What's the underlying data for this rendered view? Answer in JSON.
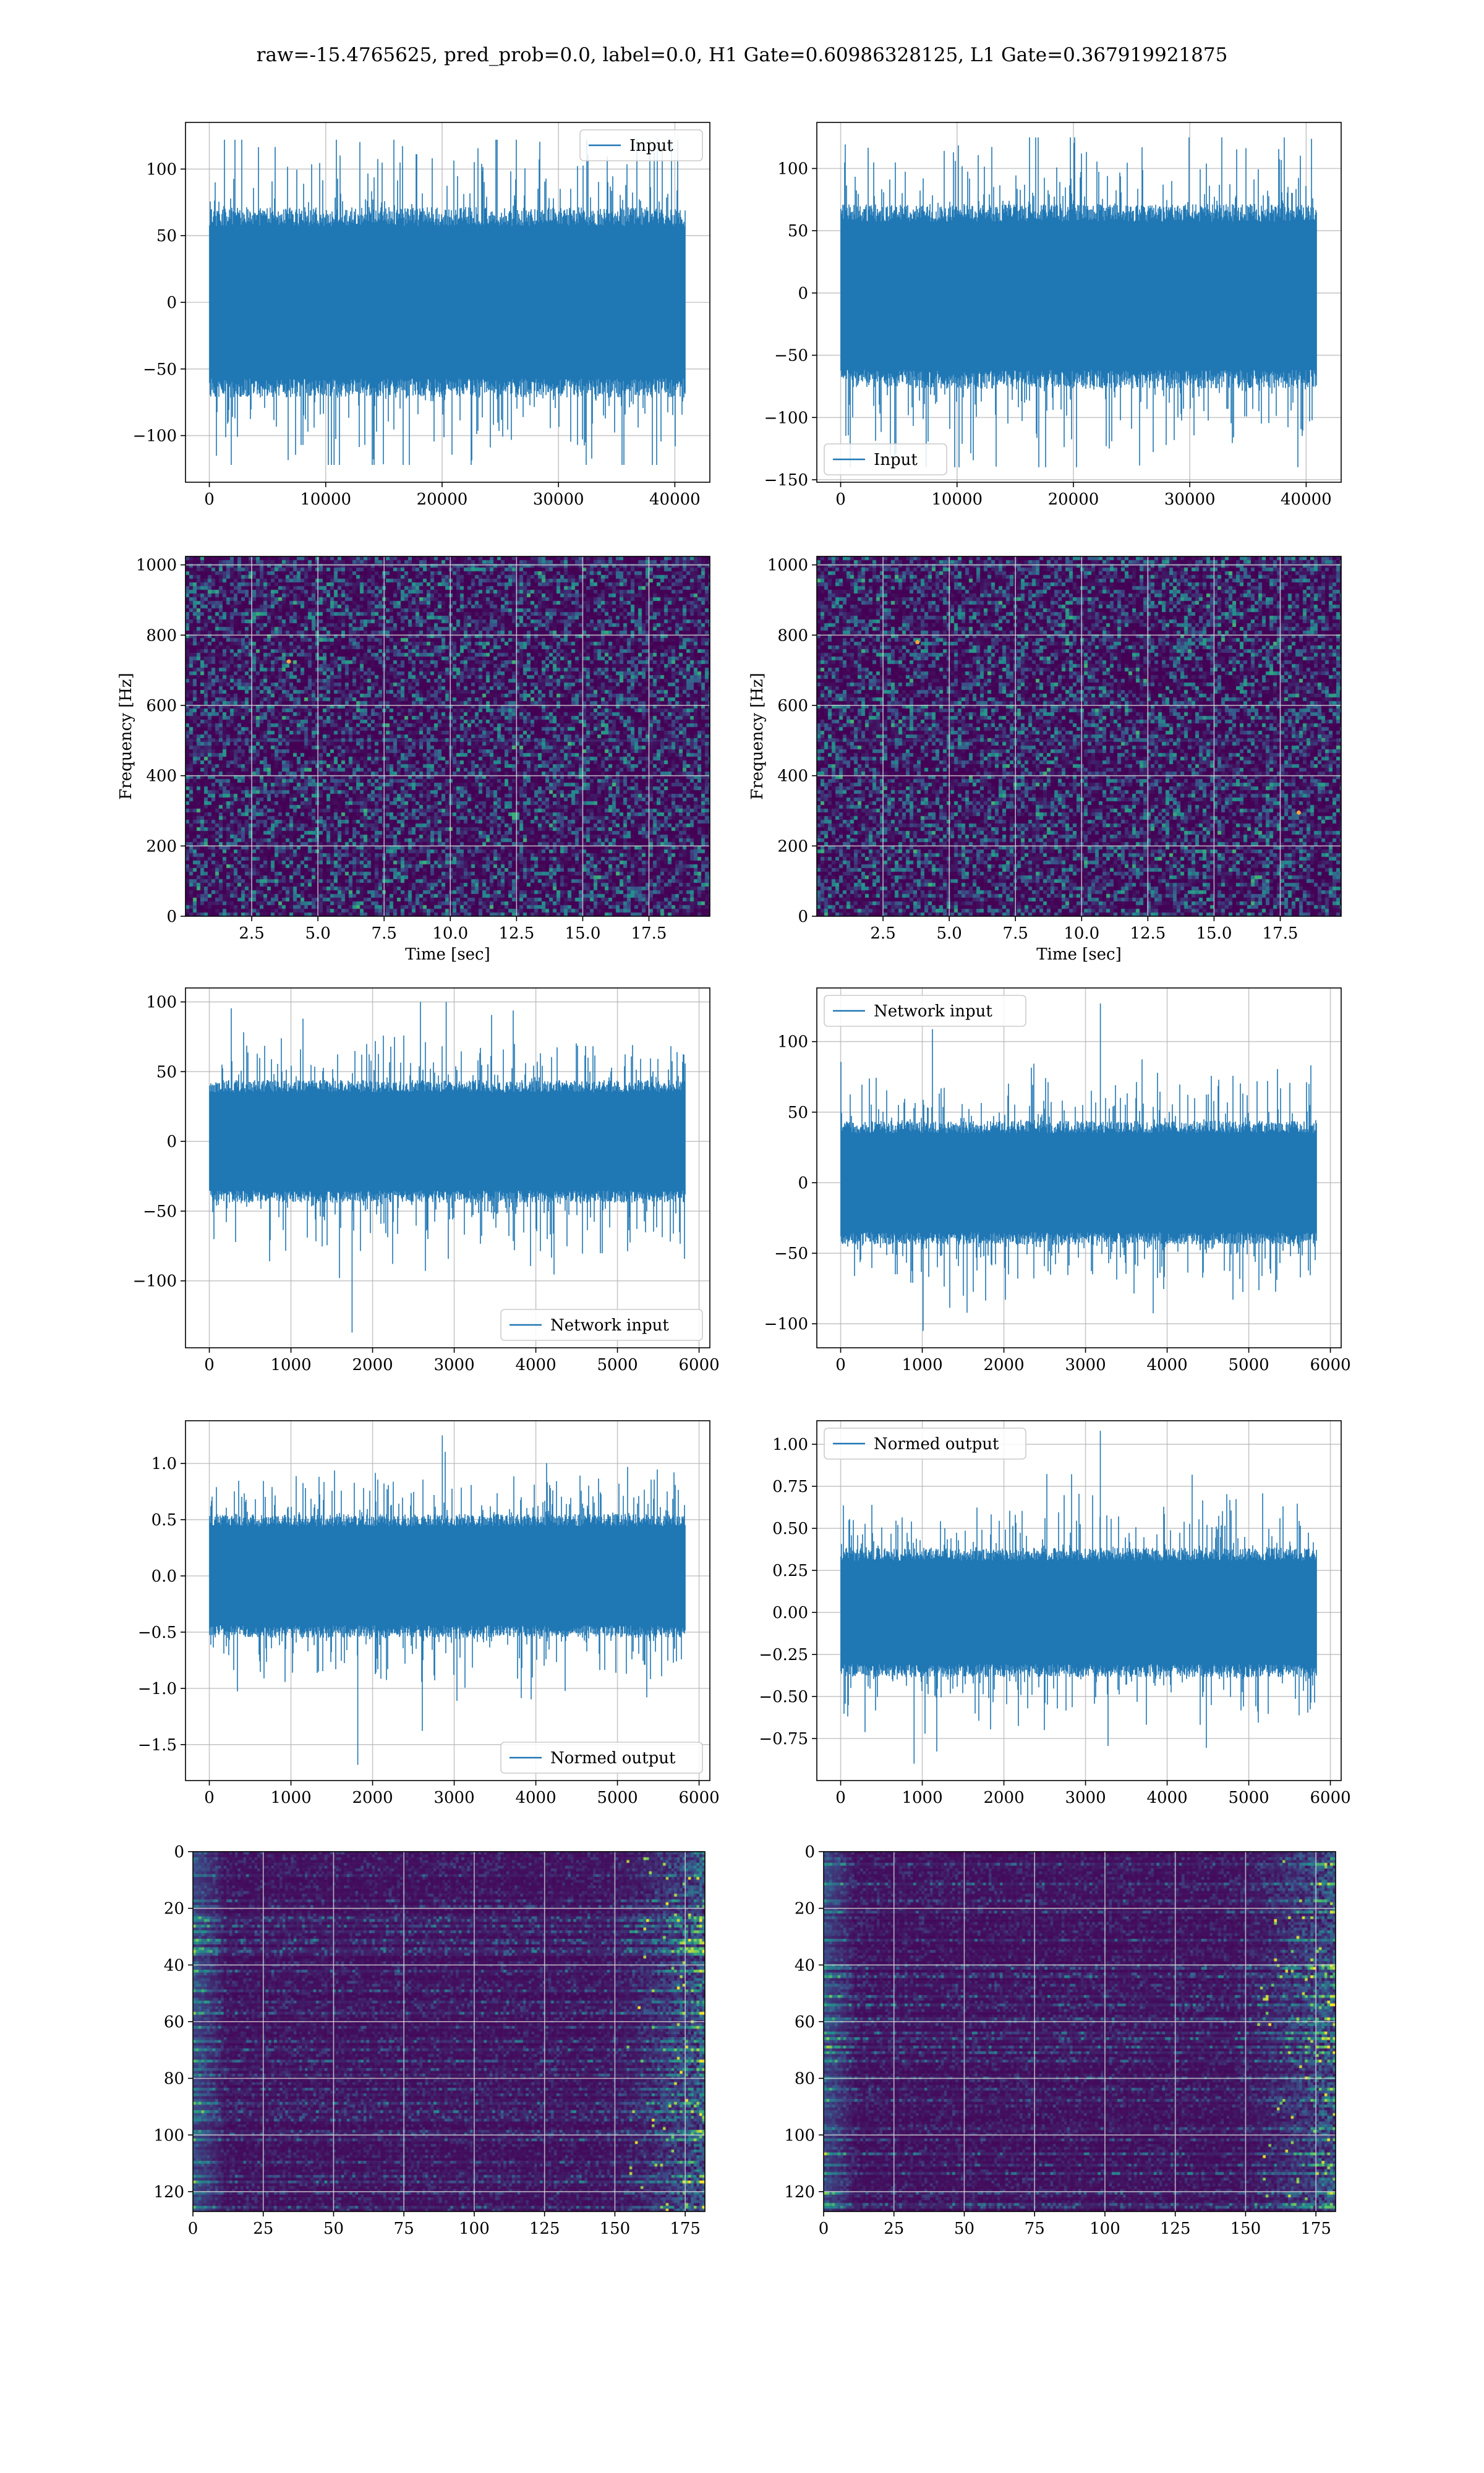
{
  "figure": {
    "suptitle": "raw=-15.4765625, pred_prob=0.0, label=0.0, H1 Gate=0.60986328125, L1 Gate=0.367919921875"
  },
  "colors": {
    "line": "#1f77b4",
    "grid": "#b0b0b0",
    "axes_edge": "#000000",
    "viridis_dark": "#440154",
    "viridis_mid": "#21918c",
    "viridis_bright": "#fde725"
  },
  "chart_data": [
    {
      "id": "input-h1",
      "type": "line",
      "series": [
        {
          "name": "Input",
          "n_samples": 40960,
          "y_min": -122,
          "y_max": 122,
          "band": [
            -65,
            65
          ]
        }
      ],
      "xlim": [
        -2048,
        43008
      ],
      "ylim": [
        -135,
        135
      ],
      "xticks": [
        0,
        10000,
        20000,
        30000,
        40000
      ],
      "xtick_labels": [
        "0",
        "10000",
        "20000",
        "30000",
        "40000"
      ],
      "yticks": [
        -100,
        -50,
        0,
        50,
        100
      ],
      "ytick_labels": [
        "−100",
        "−50",
        "0",
        "50",
        "100"
      ],
      "legend": "top-right",
      "grid": true,
      "xlabel": "",
      "ylabel": ""
    },
    {
      "id": "input-l1",
      "type": "line",
      "series": [
        {
          "name": "Input",
          "n_samples": 40960,
          "y_min": -140,
          "y_max": 125,
          "band": [
            -70,
            65
          ]
        }
      ],
      "xlim": [
        -2048,
        43008
      ],
      "ylim": [
        -152,
        137
      ],
      "xticks": [
        0,
        10000,
        20000,
        30000,
        40000
      ],
      "xtick_labels": [
        "0",
        "10000",
        "20000",
        "30000",
        "40000"
      ],
      "yticks": [
        -150,
        -100,
        -50,
        0,
        50,
        100
      ],
      "ytick_labels": [
        "−150",
        "−100",
        "−50",
        "0",
        "50",
        "100"
      ],
      "legend": "bottom-left",
      "grid": true,
      "xlabel": "",
      "ylabel": ""
    },
    {
      "id": "spectrogram-h1",
      "type": "heatmap",
      "xlim": [
        0,
        19.8
      ],
      "ylim": [
        0,
        1024
      ],
      "xticks": [
        2.5,
        5.0,
        7.5,
        10.0,
        12.5,
        15.0,
        17.5
      ],
      "xtick_labels": [
        "2.5",
        "5.0",
        "7.5",
        "10.0",
        "12.5",
        "15.0",
        "17.5"
      ],
      "yticks": [
        0,
        200,
        400,
        600,
        800,
        1000
      ],
      "ytick_labels": [
        "0",
        "200",
        "400",
        "600",
        "800",
        "1000"
      ],
      "xlabel": "Time [sec]",
      "ylabel": "Frequency [Hz]",
      "grid": true,
      "colormap": "viridis",
      "hotspots": [
        {
          "x": 3.9,
          "y": 725
        }
      ]
    },
    {
      "id": "spectrogram-l1",
      "type": "heatmap",
      "xlim": [
        0,
        19.8
      ],
      "ylim": [
        0,
        1024
      ],
      "xticks": [
        2.5,
        5.0,
        7.5,
        10.0,
        12.5,
        15.0,
        17.5
      ],
      "xtick_labels": [
        "2.5",
        "5.0",
        "7.5",
        "10.0",
        "12.5",
        "15.0",
        "17.5"
      ],
      "yticks": [
        0,
        200,
        400,
        600,
        800,
        1000
      ],
      "ytick_labels": [
        "0",
        "200",
        "400",
        "600",
        "800",
        "1000"
      ],
      "xlabel": "Time [sec]",
      "ylabel": "Frequency [Hz]",
      "grid": true,
      "colormap": "viridis",
      "hotspots": [
        {
          "x": 3.8,
          "y": 780
        },
        {
          "x": 18.2,
          "y": 295
        }
      ]
    },
    {
      "id": "network-input-h1",
      "type": "line",
      "series": [
        {
          "name": "Network input",
          "n_samples": 5840,
          "y_min": -137,
          "y_max": 100,
          "band": [
            -40,
            40
          ]
        }
      ],
      "xlim": [
        -292,
        6132
      ],
      "ylim": [
        -148,
        110
      ],
      "xticks": [
        0,
        1000,
        2000,
        3000,
        4000,
        5000,
        6000
      ],
      "xtick_labels": [
        "0",
        "1000",
        "2000",
        "3000",
        "4000",
        "5000",
        "6000"
      ],
      "yticks": [
        -100,
        -50,
        0,
        50,
        100
      ],
      "ytick_labels": [
        "−100",
        "−50",
        "0",
        "50",
        "100"
      ],
      "legend": "bottom-right",
      "grid": true,
      "xlabel": "",
      "ylabel": ""
    },
    {
      "id": "network-input-l1",
      "type": "line",
      "series": [
        {
          "name": "Network input",
          "n_samples": 5840,
          "y_min": -105,
          "y_max": 127,
          "band": [
            -40,
            40
          ]
        }
      ],
      "xlim": [
        -292,
        6132
      ],
      "ylim": [
        -117,
        138
      ],
      "xticks": [
        0,
        1000,
        2000,
        3000,
        4000,
        5000,
        6000
      ],
      "xtick_labels": [
        "0",
        "1000",
        "2000",
        "3000",
        "4000",
        "5000",
        "6000"
      ],
      "yticks": [
        -100,
        -50,
        0,
        50,
        100
      ],
      "ytick_labels": [
        "−100",
        "−50",
        "0",
        "50",
        "100"
      ],
      "legend": "top-left",
      "grid": true,
      "xlabel": "",
      "ylabel": ""
    },
    {
      "id": "normed-output-h1",
      "type": "line",
      "series": [
        {
          "name": "Normed output",
          "n_samples": 5840,
          "y_min": -1.68,
          "y_max": 1.25,
          "band": [
            -0.5,
            0.5
          ]
        }
      ],
      "xlim": [
        -292,
        6132
      ],
      "ylim": [
        -1.82,
        1.38
      ],
      "xticks": [
        0,
        1000,
        2000,
        3000,
        4000,
        5000,
        6000
      ],
      "xtick_labels": [
        "0",
        "1000",
        "2000",
        "3000",
        "4000",
        "5000",
        "6000"
      ],
      "yticks": [
        -1.5,
        -1.0,
        -0.5,
        0.0,
        0.5,
        1.0
      ],
      "ytick_labels": [
        "−1.5",
        "−1.0",
        "−0.5",
        "0.0",
        "0.5",
        "1.0"
      ],
      "legend": "bottom-right",
      "grid": true,
      "xlabel": "",
      "ylabel": ""
    },
    {
      "id": "normed-output-l1",
      "type": "line",
      "series": [
        {
          "name": "Normed output",
          "n_samples": 5840,
          "y_min": -0.9,
          "y_max": 1.08,
          "band": [
            -0.35,
            0.35
          ]
        }
      ],
      "xlim": [
        -292,
        6132
      ],
      "ylim": [
        -1.0,
        1.14
      ],
      "xticks": [
        0,
        1000,
        2000,
        3000,
        4000,
        5000,
        6000
      ],
      "xtick_labels": [
        "0",
        "1000",
        "2000",
        "3000",
        "4000",
        "5000",
        "6000"
      ],
      "yticks": [
        -0.75,
        -0.5,
        -0.25,
        0.0,
        0.25,
        0.5,
        0.75,
        1.0
      ],
      "ytick_labels": [
        "−0.75",
        "−0.50",
        "−0.25",
        "0.00",
        "0.25",
        "0.50",
        "0.75",
        "1.00"
      ],
      "legend": "top-left",
      "grid": true,
      "xlabel": "",
      "ylabel": ""
    },
    {
      "id": "feature-map-h1",
      "type": "heatmap",
      "rows": 128,
      "cols": 183,
      "xlim": [
        0,
        182
      ],
      "ylim": [
        127,
        0
      ],
      "xticks": [
        0,
        25,
        50,
        75,
        100,
        125,
        150,
        175
      ],
      "xtick_labels": [
        "0",
        "25",
        "50",
        "75",
        "100",
        "125",
        "150",
        "175"
      ],
      "yticks": [
        0,
        20,
        40,
        60,
        80,
        100,
        120
      ],
      "ytick_labels": [
        "0",
        "20",
        "40",
        "60",
        "80",
        "100",
        "120"
      ],
      "grid": true,
      "colormap": "viridis"
    },
    {
      "id": "feature-map-l1",
      "type": "heatmap",
      "rows": 128,
      "cols": 183,
      "xlim": [
        0,
        182
      ],
      "ylim": [
        127,
        0
      ],
      "xticks": [
        0,
        25,
        50,
        75,
        100,
        125,
        150,
        175
      ],
      "xtick_labels": [
        "0",
        "25",
        "50",
        "75",
        "100",
        "125",
        "150",
        "175"
      ],
      "yticks": [
        0,
        20,
        40,
        60,
        80,
        100,
        120
      ],
      "ytick_labels": [
        "0",
        "20",
        "40",
        "60",
        "80",
        "100",
        "120"
      ],
      "grid": true,
      "colormap": "viridis"
    }
  ]
}
